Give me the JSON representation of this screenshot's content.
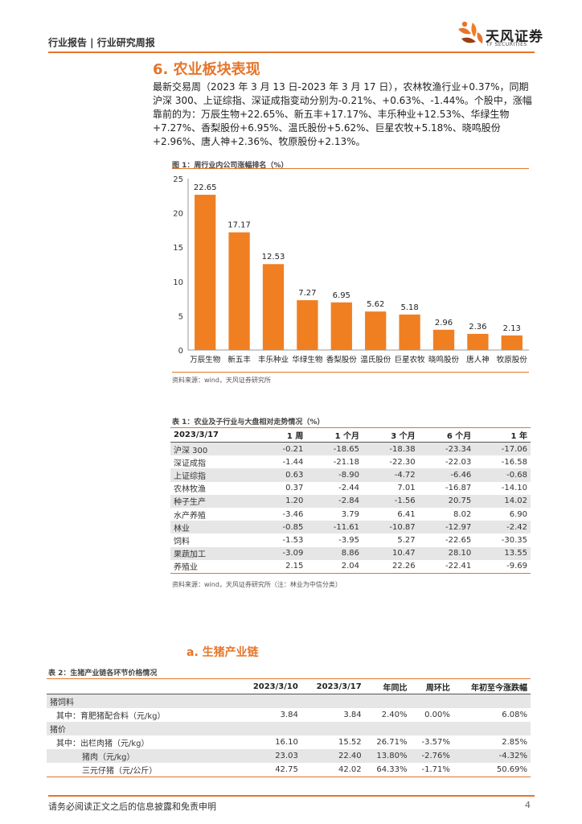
{
  "header": {
    "label": "行业报告 | 行业研究周报",
    "brand": "天风证券",
    "brand_en": "TF SECURITIES"
  },
  "section": {
    "title": "6. 农业板块表现"
  },
  "paragraph": "最新交易周（2023 年 3 月 13 日-2023 年 3 月 17 日），农林牧渔行业+0.37%，同期沪深 300、上证综指、深证成指变动分别为-0.21%、+0.63%、-1.44%。个股中，涨幅靠前的为：万辰生物+22.65%、新五丰+17.17%、丰乐种业+12.53%、华绿生物+7.27%、香梨股份+6.95%、温氏股份+5.62%、巨星农牧+5.18%、晓鸣股份+2.96%、唐人神+2.36%、牧原股份+2.13%。",
  "figure1": {
    "caption": "图 1：周行业内公司涨幅排名（%）",
    "source": "资料来源：wind，天风证券研究所"
  },
  "chart_data": {
    "type": "bar",
    "categories": [
      "万辰生物",
      "新五丰",
      "丰乐种业",
      "华绿生物",
      "香梨股份",
      "温氏股份",
      "巨星农牧",
      "晓鸣股份",
      "唐人神",
      "牧原股份"
    ],
    "values": [
      22.65,
      17.17,
      12.53,
      7.27,
      6.95,
      5.62,
      5.18,
      2.96,
      2.36,
      2.13
    ],
    "value_labels": [
      "22.65",
      "17.17",
      "12.53",
      "7.27",
      "6.95",
      "5.62",
      "5.18",
      "2.96",
      "2.36",
      "2.13"
    ],
    "ylim": [
      0,
      25
    ],
    "yticks": [
      "0",
      "5",
      "10",
      "15",
      "20",
      "25"
    ],
    "bar_color": "#F07F22",
    "grid": false
  },
  "table1": {
    "caption": "表 1：农业及子行业与大盘相对走势情况（%）",
    "headers": [
      "2023/3/17",
      "1 周",
      "1 个月",
      "3 个月",
      "6 个月",
      "1 年"
    ],
    "rows": [
      [
        "沪深 300",
        "-0.21",
        "-18.65",
        "-18.38",
        "-23.34",
        "-17.06"
      ],
      [
        "深证成指",
        "-1.44",
        "-21.18",
        "-22.30",
        "-22.03",
        "-16.58"
      ],
      [
        "上证综指",
        "0.63",
        "-8.90",
        "-4.72",
        "-6.46",
        "-0.68"
      ],
      [
        "农林牧渔",
        "0.37",
        "-2.44",
        "7.01",
        "-16.87",
        "-14.10"
      ],
      [
        "种子生产",
        "1.20",
        "-2.84",
        "-1.56",
        "20.75",
        "14.02"
      ],
      [
        "水产养殖",
        "-3.46",
        "3.79",
        "6.41",
        "8.02",
        "6.90"
      ],
      [
        "林业",
        "-0.85",
        "-11.61",
        "-10.87",
        "-12.97",
        "-2.42"
      ],
      [
        "饲料",
        "-1.53",
        "-3.95",
        "5.27",
        "-22.65",
        "-30.35"
      ],
      [
        "果蔬加工",
        "-3.09",
        "8.86",
        "10.47",
        "28.10",
        "13.55"
      ],
      [
        "养殖业",
        "2.15",
        "2.04",
        "22.26",
        "-22.41",
        "-9.69"
      ]
    ],
    "source": "资料来源：wind，天风证券研究所（注：林业为中信分类）"
  },
  "subsection": {
    "title": "a.  生猪产业链"
  },
  "table2": {
    "caption": "表 2：生猪产业链各环节价格情况",
    "headers": [
      "",
      "2023/3/10",
      "2023/3/17",
      "年同比",
      "周环比",
      "年初至今涨跌幅"
    ],
    "rows": [
      [
        "猪饲料",
        "",
        "",
        "",
        "",
        ""
      ],
      [
        "其中：育肥猪配合料（元/kg）",
        "3.84",
        "3.84",
        "2.40%",
        "0.00%",
        "6.08%"
      ],
      [
        "猪价",
        "",
        "",
        "",
        "",
        ""
      ],
      [
        "其中：出栏肉猪（元/kg）",
        "16.10",
        "15.52",
        "26.71%",
        "-3.57%",
        "2.85%"
      ],
      [
        "猪肉（元/kg）",
        "23.03",
        "22.40",
        "13.80%",
        "-2.76%",
        "-4.32%"
      ],
      [
        "三元仔猪（元/公斤）",
        "42.75",
        "42.02",
        "64.33%",
        "-1.71%",
        "50.69%"
      ]
    ]
  },
  "footer": {
    "disclaimer": "请务必阅读正文之后的信息披露和免责申明",
    "page": "4"
  },
  "colors": {
    "accent": "#E5752A",
    "row_shade": "#E6E6E6"
  }
}
